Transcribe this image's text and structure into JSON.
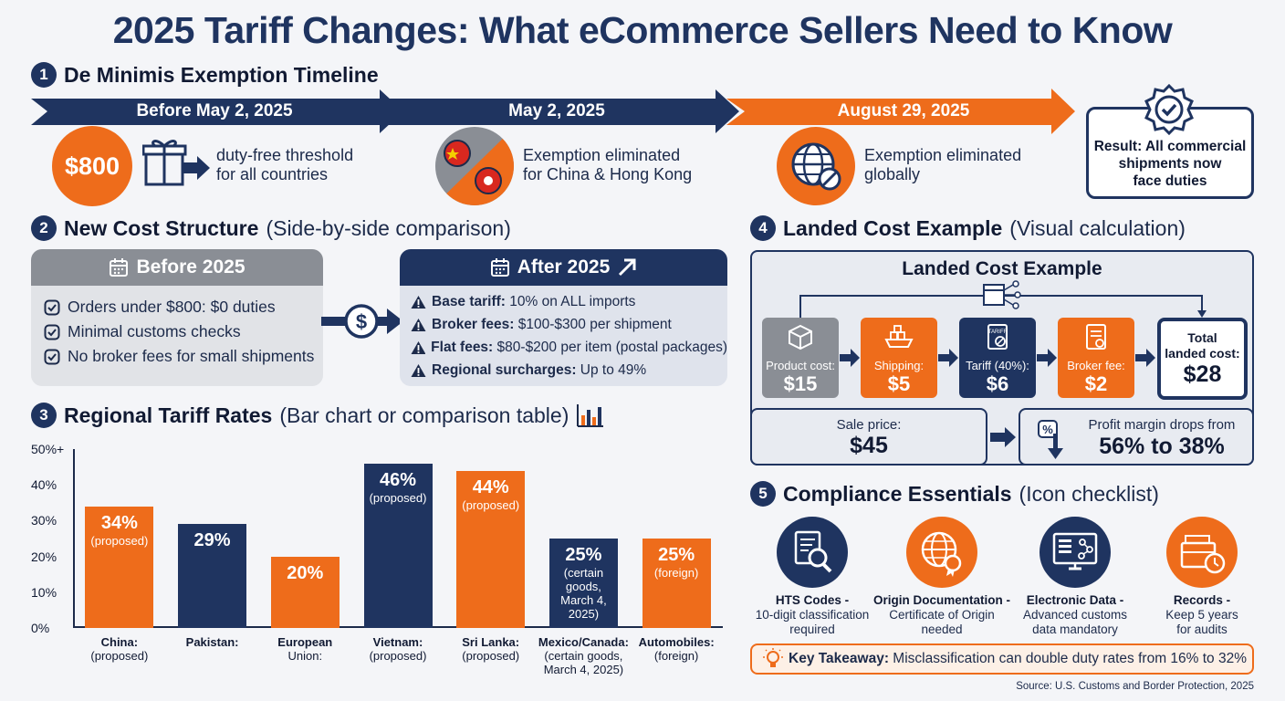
{
  "title": "2025 Tariff Changes: What eCommerce Sellers Need to Know",
  "section1": {
    "num": "1",
    "heading": "De Minimis Exemption Timeline",
    "phases": [
      {
        "label": "Before May 2, 2025",
        "badge": "$800",
        "desc_line1": "duty-free threshold",
        "desc_line2": "for all countries"
      },
      {
        "label": "May 2, 2025",
        "desc_line1": "Exemption eliminated",
        "desc_line2": "for China & Hong Kong"
      },
      {
        "label": "August 29, 2025",
        "desc_line1": "Exemption eliminated",
        "desc_line2": "globally"
      }
    ],
    "result_line1": "Result: All commercial",
    "result_line2": "shipments now",
    "result_line3": "face duties"
  },
  "section2": {
    "num": "2",
    "heading": "New Cost Structure",
    "subheading": "(Side-by-side comparison)",
    "before": {
      "title": "Before 2025",
      "items": [
        "Orders under $800: $0 duties",
        "Minimal customs checks",
        "No broker fees for small shipments"
      ]
    },
    "after": {
      "title": "After 2025",
      "items": [
        {
          "bold": "Base tariff:",
          "text": " 10% on ALL imports"
        },
        {
          "bold": "Broker fees:",
          "text": " $100-$300 per shipment"
        },
        {
          "bold": "Flat fees:",
          "text": " $80-$200 per item (postal packages)"
        },
        {
          "bold": "Regional surcharges:",
          "text": " Up to 49%"
        }
      ]
    }
  },
  "section3": {
    "num": "3",
    "heading": "Regional Tariff Rates",
    "subheading": "(Bar chart or comparison table)"
  },
  "chart_data": {
    "type": "bar",
    "categories": [
      "China: (proposed)",
      "Pakistan:",
      "European Union:",
      "Vietnam: (proposed)",
      "Sri Lanka: (proposed)",
      "Mexico/Canada: (certain goods, March 4, 2025)",
      "Automobiles: (foreign)"
    ],
    "values": [
      34,
      29,
      20,
      46,
      44,
      25,
      25
    ],
    "bar_colors": [
      "#ee6c1b",
      "#1f3460",
      "#ee6c1b",
      "#1f3460",
      "#ee6c1b",
      "#1f3460",
      "#ee6c1b"
    ],
    "value_labels": [
      "34%",
      "29%",
      "20%",
      "46%",
      "44%",
      "25%",
      "25%"
    ],
    "value_notes": [
      [
        "(proposed)"
      ],
      [],
      [],
      [
        "(proposed)"
      ],
      [
        "(proposed)"
      ],
      [
        "(certain",
        "goods,",
        "March 4,",
        "2025)"
      ],
      [
        "(foreign)"
      ]
    ],
    "x_labels": [
      [
        "China:",
        "(proposed)"
      ],
      [
        "Pakistan:"
      ],
      [
        "European",
        "Union:"
      ],
      [
        "Vietnam:",
        "(proposed)"
      ],
      [
        "Sri Lanka:",
        "(proposed)"
      ],
      [
        "Mexico/Canada:",
        "(certain goods,",
        "March 4, 2025)"
      ],
      [
        "Automobiles:",
        "(foreign)"
      ]
    ],
    "y_ticks": [
      "0%",
      "10%",
      "20%",
      "30%",
      "40%",
      "50%+"
    ],
    "ylim": [
      0,
      50
    ],
    "grid": false
  },
  "section4": {
    "num": "4",
    "heading": "Landed Cost Example",
    "subheading": "(Visual calculation)",
    "box_title": "Landed Cost Example",
    "steps": [
      {
        "label": "Product cost:",
        "value": "$15"
      },
      {
        "label": "Shipping:",
        "value": "$5"
      },
      {
        "label": "Tariff (40%):",
        "value": "$6"
      },
      {
        "label": "Broker fee:",
        "value": "$2"
      }
    ],
    "total_label_line1": "Total",
    "total_label_line2": "landed cost:",
    "total_value": "$28",
    "sale_label": "Sale price:",
    "sale_value": "$45",
    "margin_label": "Profit margin drops from",
    "margin_value": "56% to 38%",
    "doc_icon_text": "TARIFF"
  },
  "section5": {
    "num": "5",
    "heading": "Compliance Essentials",
    "subheading": "(Icon checklist)",
    "items": [
      {
        "title": "HTS Codes -",
        "line2": "10-digit classification",
        "line3": "required"
      },
      {
        "title": "Origin Documentation -",
        "line2": "Certificate of Origin",
        "line3": "needed"
      },
      {
        "title": "Electronic Data -",
        "line2": "Advanced customs",
        "line3": "data mandatory"
      },
      {
        "title": "Records -",
        "line2": "Keep 5 years",
        "line3": "for audits"
      }
    ],
    "takeaway_bold": "Key Takeaway:",
    "takeaway_text": " Misclassification can double duty rates from 16% to 32%"
  },
  "source": "Source: U.S. Customs and Border Protection, 2025",
  "colors": {
    "navy": "#1f3460",
    "orange": "#ee6c1b",
    "gray": "#8a8e95"
  }
}
